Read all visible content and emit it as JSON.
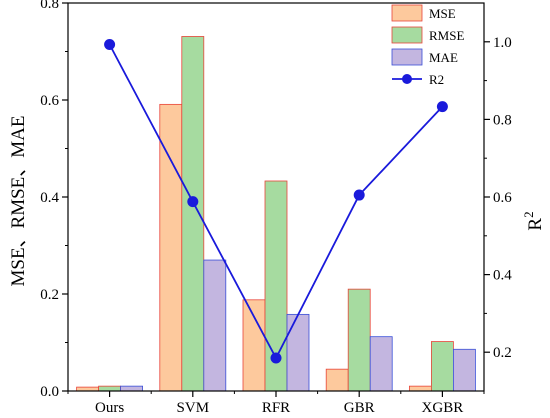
{
  "chart_data": {
    "type": "bar",
    "categories": [
      "Ours",
      "SVM",
      "RFR",
      "GBR",
      "XGBR"
    ],
    "series": [
      {
        "name": "MSE",
        "axis": "left",
        "kind": "bar",
        "color": "#fdc99d",
        "edge": "#e8453a",
        "values": [
          0.008,
          0.591,
          0.188,
          0.045,
          0.01
        ]
      },
      {
        "name": "RMSE",
        "axis": "left",
        "kind": "bar",
        "color": "#a6dba0",
        "edge": "#e8453a",
        "values": [
          0.01,
          0.731,
          0.433,
          0.21,
          0.102
        ]
      },
      {
        "name": "MAE",
        "axis": "left",
        "kind": "bar",
        "color": "#c3b6e0",
        "edge": "#3a4fd8",
        "values": [
          0.01,
          0.27,
          0.158,
          0.112,
          0.086
        ]
      },
      {
        "name": "R2",
        "axis": "right",
        "kind": "line",
        "color": "#1a1adb",
        "values": [
          0.993,
          0.588,
          0.185,
          0.605,
          0.833
        ]
      }
    ],
    "yleft": {
      "label": "MSE、RMSE、MAE",
      "lim": [
        0,
        0.8
      ],
      "ticks": [
        "0.0",
        "0.2",
        "0.4",
        "0.6",
        "0.8"
      ]
    },
    "yright": {
      "label": "R",
      "label_sup": "2",
      "lim": [
        0.1,
        1.1
      ],
      "ticks": [
        "0.2",
        "0.4",
        "0.6",
        "0.8",
        "1.0"
      ]
    },
    "legend": {
      "position": "top-right"
    },
    "grid": false
  }
}
